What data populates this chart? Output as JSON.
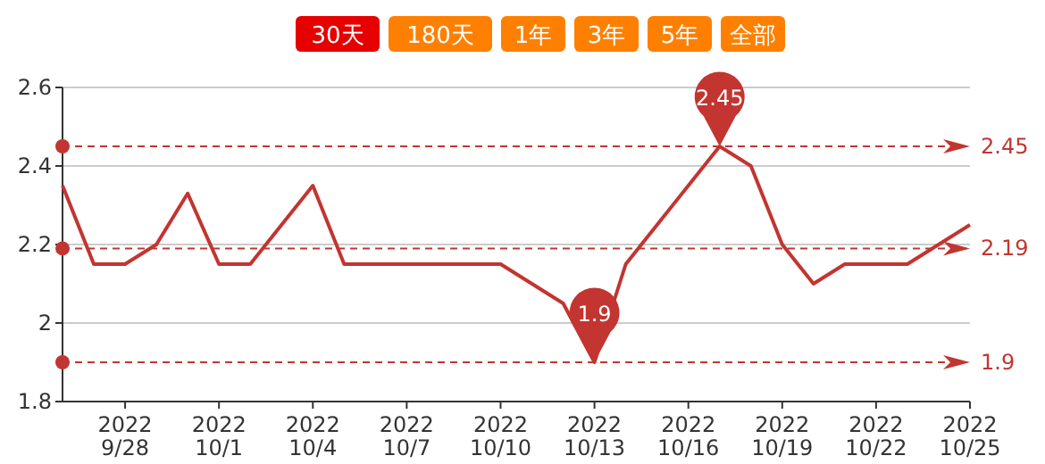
{
  "chart_data": {
    "type": "line",
    "x": [
      "2022-09-26",
      "2022-09-27",
      "2022-09-28",
      "2022-09-29",
      "2022-09-30",
      "2022-10-01",
      "2022-10-02",
      "2022-10-03",
      "2022-10-04",
      "2022-10-05",
      "2022-10-06",
      "2022-10-07",
      "2022-10-08",
      "2022-10-09",
      "2022-10-10",
      "2022-10-11",
      "2022-10-12",
      "2022-10-13",
      "2022-10-14",
      "2022-10-15",
      "2022-10-16",
      "2022-10-17",
      "2022-10-18",
      "2022-10-19",
      "2022-10-20",
      "2022-10-21",
      "2022-10-22",
      "2022-10-23",
      "2022-10-24",
      "2022-10-25"
    ],
    "series": [
      {
        "color": "#c23531",
        "values": [
          2.35,
          2.15,
          2.15,
          2.2,
          2.33,
          2.15,
          2.15,
          2.25,
          2.35,
          2.15,
          2.15,
          2.15,
          2.15,
          2.15,
          2.15,
          2.1,
          2.05,
          1.9,
          2.15,
          2.25,
          2.35,
          2.45,
          2.4,
          2.2,
          2.1,
          2.15,
          2.15,
          2.15,
          2.2,
          2.25
        ]
      }
    ],
    "xlim": [
      "2022-09-26",
      "2022-10-25"
    ],
    "xticks": [
      {
        "value": "2022-09-28",
        "label": "2022\n9/28"
      },
      {
        "value": "2022-10-01",
        "label": "2022\n10/1"
      },
      {
        "value": "2022-10-04",
        "label": "2022\n10/4"
      },
      {
        "value": "2022-10-07",
        "label": "2022\n10/7"
      },
      {
        "value": "2022-10-10",
        "label": "2022\n10/10"
      },
      {
        "value": "2022-10-13",
        "label": "2022\n10/13"
      },
      {
        "value": "2022-10-16",
        "label": "2022\n10/16"
      },
      {
        "value": "2022-10-19",
        "label": "2022\n10/19"
      },
      {
        "value": "2022-10-22",
        "label": "2022\n10/22"
      },
      {
        "value": "2022-10-25",
        "label": "2022\n10/25"
      }
    ],
    "ylim": [
      1.8,
      2.6
    ],
    "yticks": [
      1.8,
      2,
      2.2,
      2.4,
      2.6
    ],
    "grid": "y",
    "marker": "none",
    "line_style": "solid",
    "ref_lines": [
      {
        "axis": "y",
        "value": 2.45,
        "label": "2.45",
        "color": "#c23531",
        "line_style": "dashed"
      },
      {
        "axis": "y",
        "value": 2.19,
        "label": "2.19",
        "color": "#c23531",
        "line_style": "dashed"
      },
      {
        "axis": "y",
        "value": 1.9,
        "label": "1.9",
        "color": "#c23531",
        "line_style": "dashed"
      }
    ],
    "annotations": [
      "30天",
      "180天",
      "1年",
      "3年",
      "5年",
      "全部",
      {
        "text": "2.45",
        "x": "2022-10-17",
        "y": 2.45
      },
      {
        "text": "1.9",
        "x": "2022-10-13",
        "y": 1.9
      }
    ]
  }
}
